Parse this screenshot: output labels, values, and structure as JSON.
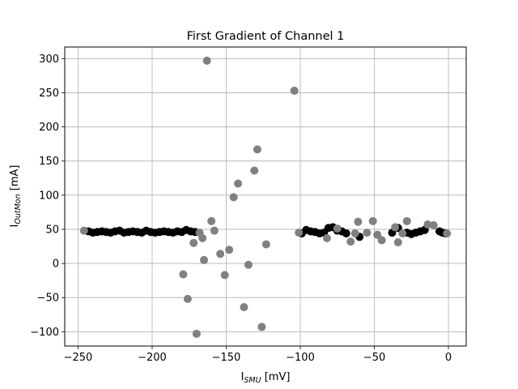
{
  "chart_data": {
    "type": "scatter",
    "title": "First Gradient of Channel 1",
    "xlabel": {
      "base": "I",
      "sub": "SMU",
      "unit": " [mV]"
    },
    "ylabel": {
      "base": "I",
      "sub": "OutMon",
      "unit": " [mA]"
    },
    "xlim": [
      -259,
      12
    ],
    "ylim": [
      -121,
      317
    ],
    "xticks": [
      -250,
      -200,
      -150,
      -100,
      -50,
      0
    ],
    "yticks": [
      -100,
      -50,
      0,
      50,
      100,
      150,
      200,
      250,
      300
    ],
    "xtick_labels": [
      "−250",
      "−200",
      "−150",
      "−100",
      "−50",
      "0"
    ],
    "ytick_labels": [
      "−100",
      "−50",
      "0",
      "50",
      "100",
      "150",
      "200",
      "250",
      "300"
    ],
    "grid": true,
    "colors": {
      "black_series": "#000000",
      "gray_series": "#808080",
      "grid": "#b0b0b0"
    },
    "series": [
      {
        "color": "#000000",
        "points": [
          [
            -243,
            47
          ],
          [
            -240,
            45
          ],
          [
            -237,
            46
          ],
          [
            -234,
            47
          ],
          [
            -231,
            46
          ],
          [
            -228,
            45
          ],
          [
            -225,
            47
          ],
          [
            -222,
            48
          ],
          [
            -219,
            45
          ],
          [
            -216,
            46
          ],
          [
            -213,
            47
          ],
          [
            -210,
            46
          ],
          [
            -207,
            45
          ],
          [
            -204,
            48
          ],
          [
            -201,
            46
          ],
          [
            -198,
            45
          ],
          [
            -195,
            46
          ],
          [
            -192,
            47
          ],
          [
            -189,
            46
          ],
          [
            -186,
            45
          ],
          [
            -183,
            47
          ],
          [
            -180,
            46
          ],
          [
            -177,
            49
          ],
          [
            -174,
            47
          ],
          [
            -171,
            46
          ],
          [
            -99,
            44
          ],
          [
            -96,
            49
          ],
          [
            -93,
            47
          ],
          [
            -90,
            46
          ],
          [
            -87,
            44
          ],
          [
            -84,
            45
          ],
          [
            -81,
            52
          ],
          [
            -78,
            53
          ],
          [
            -75,
            48
          ],
          [
            -72,
            47
          ],
          [
            -69,
            44
          ],
          [
            -60,
            39
          ],
          [
            -38,
            45
          ],
          [
            -34,
            52
          ],
          [
            -28,
            45
          ],
          [
            -25,
            43
          ],
          [
            -22,
            45
          ],
          [
            -19,
            47
          ],
          [
            -16,
            49
          ],
          [
            -6,
            47
          ],
          [
            -4,
            45
          ],
          [
            -2,
            44
          ]
        ]
      },
      {
        "color": "#808080",
        "points": [
          [
            -246,
            48
          ],
          [
            -179,
            -16
          ],
          [
            -176,
            -52
          ],
          [
            -172,
            30
          ],
          [
            -170,
            -103
          ],
          [
            -168,
            45
          ],
          [
            -166,
            37
          ],
          [
            -165,
            5
          ],
          [
            -163,
            297
          ],
          [
            -160,
            62
          ],
          [
            -158,
            48
          ],
          [
            -154,
            14
          ],
          [
            -151,
            -17
          ],
          [
            -148,
            20
          ],
          [
            -145,
            97
          ],
          [
            -142,
            117
          ],
          [
            -138,
            -64
          ],
          [
            -135,
            -2
          ],
          [
            -131,
            136
          ],
          [
            -129,
            167
          ],
          [
            -126,
            -93
          ],
          [
            -123,
            28
          ],
          [
            -104,
            253
          ],
          [
            -101,
            45
          ],
          [
            -82,
            37
          ],
          [
            -75,
            51
          ],
          [
            -66,
            32
          ],
          [
            -63,
            44
          ],
          [
            -61,
            61
          ],
          [
            -55,
            45
          ],
          [
            -51,
            62
          ],
          [
            -48,
            42
          ],
          [
            -45,
            34
          ],
          [
            -36,
            53
          ],
          [
            -34,
            31
          ],
          [
            -31,
            44
          ],
          [
            -28,
            62
          ],
          [
            -14,
            57
          ],
          [
            -10,
            56
          ],
          [
            -1,
            44
          ]
        ]
      }
    ]
  }
}
